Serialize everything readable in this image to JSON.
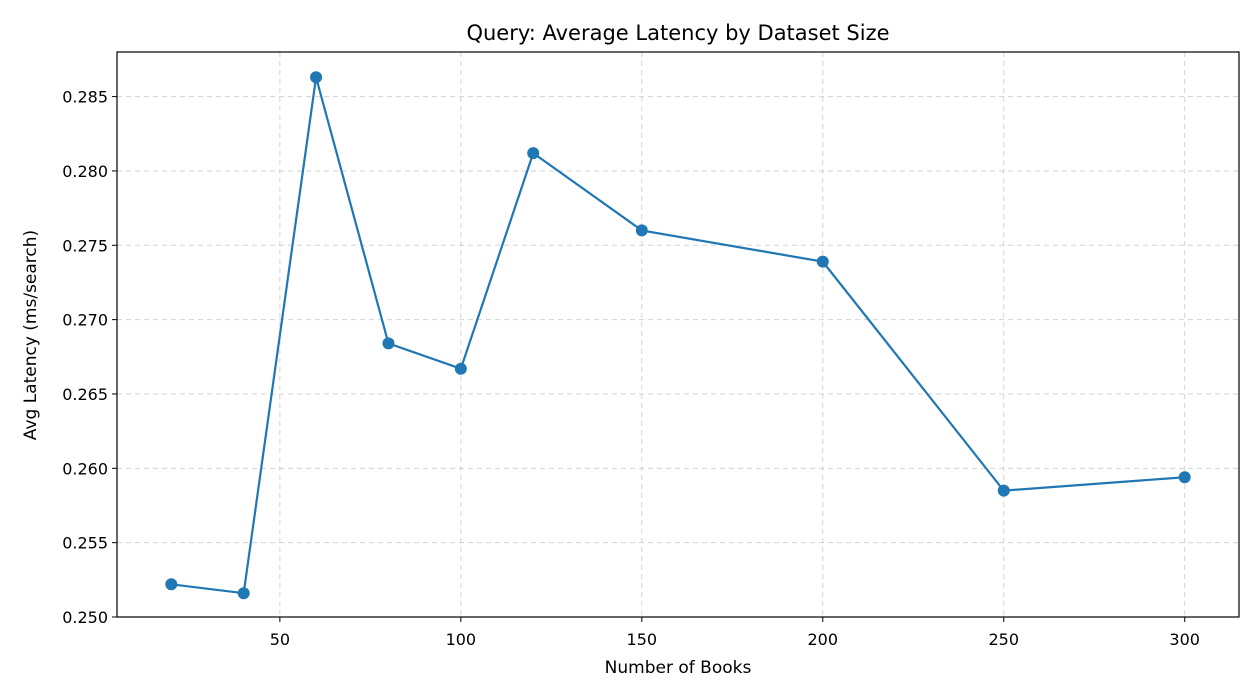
{
  "chart_data": {
    "type": "line",
    "title": "Query: Average Latency by Dataset Size",
    "xlabel": "Number of Books",
    "ylabel": "Avg Latency (ms/search)",
    "xlim": [
      5,
      315
    ],
    "ylim": [
      0.25,
      0.288
    ],
    "xticks": [
      50,
      100,
      150,
      200,
      250,
      300
    ],
    "xtick_labels": [
      "50",
      "100",
      "150",
      "200",
      "250",
      "300"
    ],
    "yticks": [
      0.25,
      0.255,
      0.26,
      0.265,
      0.27,
      0.275,
      0.28,
      0.285
    ],
    "ytick_labels": [
      "0.250",
      "0.255",
      "0.260",
      "0.265",
      "0.270",
      "0.275",
      "0.280",
      "0.285"
    ],
    "grid": true,
    "marker": "circle",
    "series": [
      {
        "color": "#1f77b4",
        "x": [
          20,
          40,
          60,
          80,
          100,
          120,
          150,
          200,
          250,
          300
        ],
        "y": [
          0.2522,
          0.2516,
          0.2863,
          0.2684,
          0.2667,
          0.2812,
          0.276,
          0.2739,
          0.2585,
          0.2594
        ]
      }
    ]
  }
}
